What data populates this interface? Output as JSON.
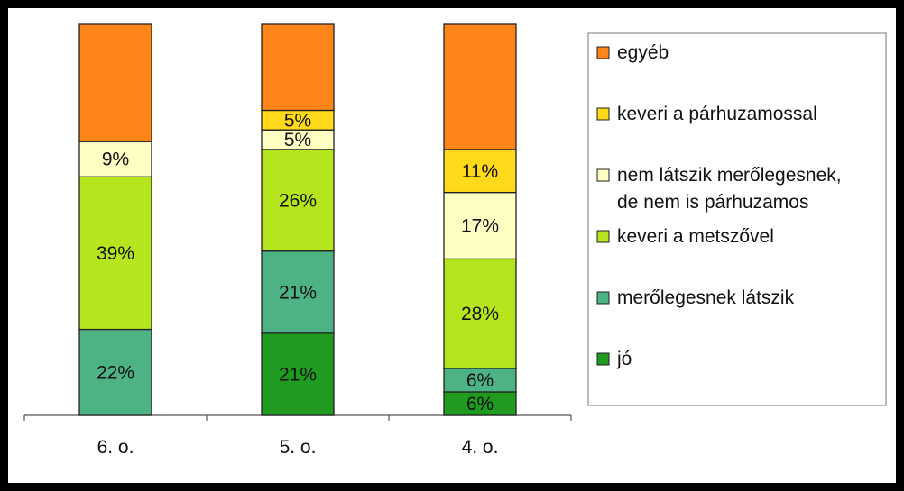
{
  "chart_data": {
    "type": "bar",
    "stacked": true,
    "normalized_100": true,
    "categories": [
      "6. o.",
      "5. o.",
      "4. o."
    ],
    "series": [
      {
        "name": "jó",
        "color": "#1F9B1F",
        "values": [
          0,
          21,
          6
        ],
        "labels": [
          "",
          "21%",
          "6%"
        ]
      },
      {
        "name": "merőlegesnek látszik",
        "color": "#4DB384",
        "values": [
          22,
          21,
          6
        ],
        "labels": [
          "22%",
          "21%",
          "6%"
        ]
      },
      {
        "name": "keveri a metszővel",
        "color": "#B5E61D",
        "values": [
          39,
          26,
          28
        ],
        "labels": [
          "39%",
          "26%",
          "28%"
        ]
      },
      {
        "name": "nem látszik merőlegesnek, de nem is párhuzamos",
        "legend_lines": [
          "nem látszik merőlegesnek,",
          "de nem is párhuzamos"
        ],
        "color": "#FFFFC4",
        "values": [
          9,
          5,
          17
        ],
        "labels": [
          "9%",
          "5%",
          "17%"
        ]
      },
      {
        "name": "keveri a párhuzamossal",
        "color": "#FFD91A",
        "values": [
          0,
          5,
          11
        ],
        "labels": [
          "",
          "5%",
          "11%"
        ]
      },
      {
        "name": "egyéb",
        "color": "#FF8519",
        "values": [
          30,
          22,
          32
        ],
        "labels": [
          "",
          "",
          ""
        ]
      }
    ],
    "legend_position": "right",
    "grid": false,
    "ylim": [
      0,
      100
    ]
  }
}
